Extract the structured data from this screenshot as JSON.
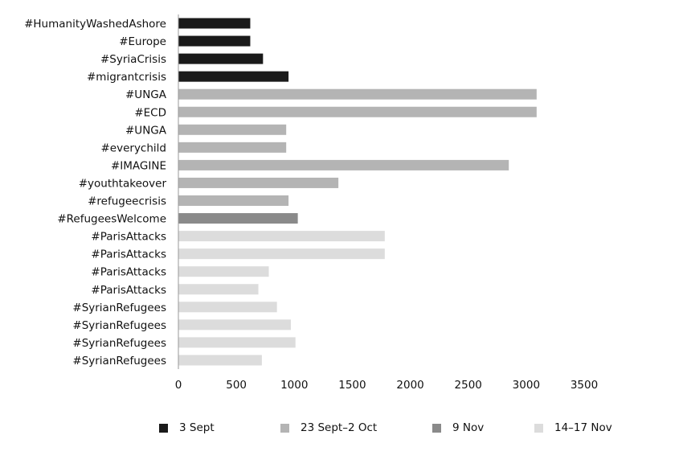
{
  "chart_data": {
    "type": "bar",
    "orientation": "horizontal",
    "categories": [
      "#HumanityWashedAshore",
      "#Europe",
      "#SyriaCrisis",
      "#migrantcrisis",
      "#UNGA",
      "#ECD",
      "#UNGA",
      "#everychild",
      "#IMAGINE",
      "#youthtakeover",
      "#refugeecrisis",
      "#RefugeesWelcome",
      "#ParisAttacks",
      "#ParisAttacks",
      "#ParisAttacks",
      "#ParisAttacks",
      "#SyrianRefugees",
      "#SyrianRefugees",
      "#SyrianRefugees",
      "#SyrianRefugees"
    ],
    "values": [
      620,
      620,
      730,
      950,
      3090,
      3090,
      930,
      930,
      2850,
      1380,
      950,
      1030,
      1780,
      1780,
      780,
      690,
      850,
      970,
      1010,
      720
    ],
    "period_index": [
      0,
      0,
      0,
      0,
      1,
      1,
      1,
      1,
      1,
      1,
      1,
      2,
      3,
      3,
      3,
      3,
      3,
      3,
      3,
      3
    ],
    "series": [
      {
        "name": "3 Sept",
        "color": "#1a1a1a"
      },
      {
        "name": "23 Sept–2 Oct",
        "color": "#b4b4b4"
      },
      {
        "name": "9 Nov",
        "color": "#8a8a8a"
      },
      {
        "name": "14–17 Nov",
        "color": "#dcdcdc"
      }
    ],
    "xticks": [
      "0",
      "500",
      "1000",
      "1500",
      "2000",
      "2500",
      "3000",
      "3500"
    ],
    "xlim": [
      0,
      3500
    ],
    "title": "",
    "xlabel": "",
    "ylabel": "",
    "grid": false,
    "legend_position": "bottom"
  }
}
